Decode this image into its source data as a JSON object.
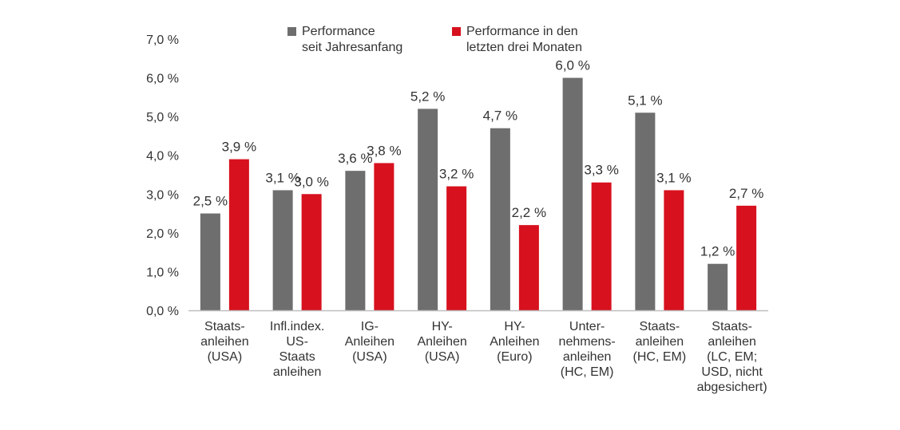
{
  "chart_data": {
    "type": "bar",
    "categories": [
      [
        "Staats-",
        "anleihen",
        "(USA)"
      ],
      [
        "Infl.index.",
        "US-",
        "Staats",
        "anleihen"
      ],
      [
        "IG-",
        "Anleihen",
        "(USA)"
      ],
      [
        "HY-",
        "Anleihen",
        "(USA)"
      ],
      [
        "HY-",
        "Anleihen",
        "(Euro)"
      ],
      [
        "Unter-",
        "nehmens-",
        "anleihen",
        "(HC, EM)"
      ],
      [
        "Staats-",
        "anleihen",
        "(HC, EM)"
      ],
      [
        "Staats-",
        "anleihen",
        "(LC, EM;",
        "USD, nicht",
        "abgesichert)"
      ]
    ],
    "series": [
      {
        "name": "Performance\nseit Jahresanfang",
        "color": "#6e6e6e",
        "values": [
          2.5,
          3.1,
          3.6,
          5.2,
          4.7,
          6.0,
          5.1,
          1.2
        ],
        "labels": [
          "2,5 %",
          "3,1 %",
          "3,6 %",
          "5,2 %",
          "4,7 %",
          "6,0 %",
          "5,1 %",
          "1,2 %"
        ]
      },
      {
        "name": "Performance in den\nletzten drei Monaten",
        "color": "#d7111e",
        "values": [
          3.9,
          3.0,
          3.8,
          3.2,
          2.2,
          3.3,
          3.1,
          2.7
        ],
        "labels": [
          "3,9 %",
          "3,0 %",
          "3,8 %",
          "3,2 %",
          "2,2 %",
          "3,3 %",
          "3,1 %",
          "2,7 %"
        ]
      }
    ],
    "yticks": [
      "0,0 %",
      "1,0 %",
      "2,0 %",
      "3,0 %",
      "4,0 %",
      "5,0 %",
      "6,0 %",
      "7,0 %"
    ],
    "ylim": [
      0,
      7
    ],
    "grid": false,
    "legend_position": "top"
  }
}
